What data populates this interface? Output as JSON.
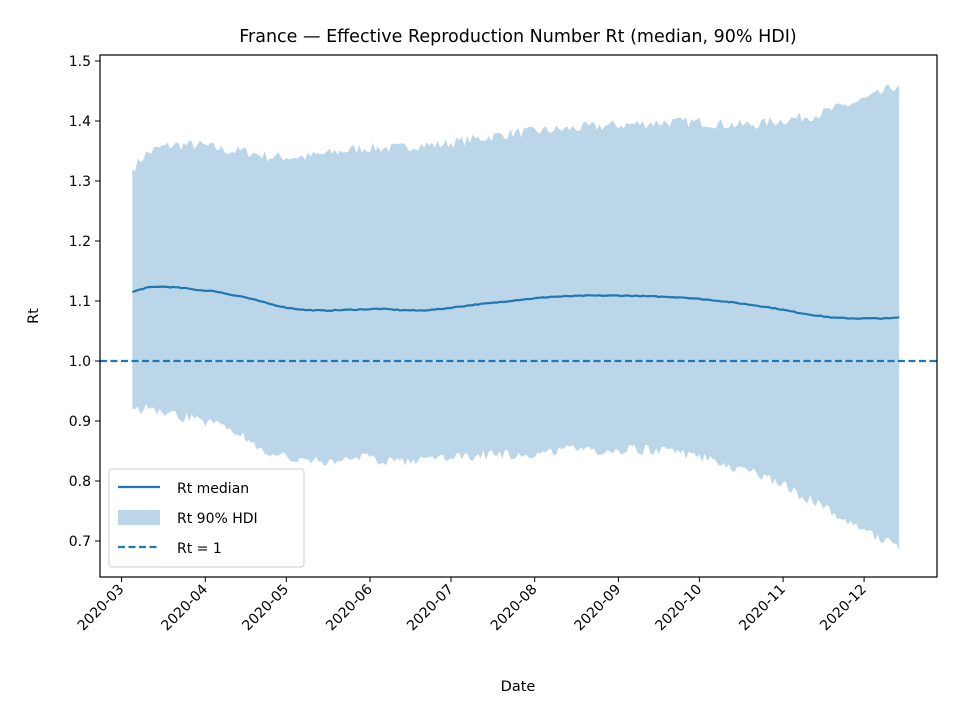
{
  "chart_data": {
    "type": "line",
    "title": "France — Effective Reproduction Number Rt (median, 90% HDI)",
    "xlabel": "Date",
    "ylabel": "Rt",
    "xlim": [
      "2020-02-22",
      "2020-12-28"
    ],
    "ylim": [
      0.64,
      1.51
    ],
    "x_ticks": [
      "2020-03-01",
      "2020-04-01",
      "2020-05-01",
      "2020-06-01",
      "2020-07-01",
      "2020-08-01",
      "2020-09-01",
      "2020-10-01",
      "2020-11-01",
      "2020-12-01"
    ],
    "x_tick_labels": [
      "2020-03",
      "2020-04",
      "2020-05",
      "2020-06",
      "2020-07",
      "2020-08",
      "2020-09",
      "2020-10",
      "2020-11",
      "2020-12"
    ],
    "y_ticks": [
      0.7,
      0.8,
      0.9,
      1.0,
      1.1,
      1.2,
      1.3,
      1.4,
      1.5
    ],
    "y_tick_labels": [
      "0.7",
      "0.8",
      "0.9",
      "1.0",
      "1.1",
      "1.2",
      "1.3",
      "1.4",
      "1.5"
    ],
    "grid": false,
    "legend_position": "lower-left",
    "colors": {
      "median": "#1f77b4",
      "band": "#1f77b4",
      "band_opacity": 0.3,
      "reference": "#1f77b4"
    },
    "series": [
      {
        "name": "Rt median",
        "kind": "line",
        "x": [
          "2020-03-05",
          "2020-03-10",
          "2020-03-15",
          "2020-03-20",
          "2020-03-25",
          "2020-03-30",
          "2020-04-05",
          "2020-04-10",
          "2020-04-15",
          "2020-04-20",
          "2020-04-25",
          "2020-05-01",
          "2020-05-08",
          "2020-05-15",
          "2020-05-22",
          "2020-05-29",
          "2020-06-05",
          "2020-06-12",
          "2020-06-19",
          "2020-06-26",
          "2020-07-03",
          "2020-07-10",
          "2020-07-17",
          "2020-07-24",
          "2020-07-31",
          "2020-08-07",
          "2020-08-14",
          "2020-08-21",
          "2020-08-28",
          "2020-09-04",
          "2020-09-11",
          "2020-09-18",
          "2020-09-25",
          "2020-10-02",
          "2020-10-09",
          "2020-10-16",
          "2020-10-23",
          "2020-10-30",
          "2020-11-06",
          "2020-11-13",
          "2020-11-20",
          "2020-11-27",
          "2020-12-04",
          "2020-12-11",
          "2020-12-14"
        ],
        "values": [
          1.115,
          1.122,
          1.124,
          1.123,
          1.121,
          1.118,
          1.116,
          1.111,
          1.107,
          1.101,
          1.095,
          1.089,
          1.085,
          1.084,
          1.085,
          1.086,
          1.087,
          1.085,
          1.084,
          1.086,
          1.09,
          1.094,
          1.097,
          1.101,
          1.104,
          1.107,
          1.108,
          1.109,
          1.109,
          1.109,
          1.108,
          1.107,
          1.106,
          1.103,
          1.1,
          1.096,
          1.092,
          1.087,
          1.081,
          1.076,
          1.072,
          1.071,
          1.071,
          1.071,
          1.073
        ]
      },
      {
        "name": "Rt 90% HDI",
        "kind": "band",
        "x": [
          "2020-03-05",
          "2020-03-10",
          "2020-03-15",
          "2020-03-20",
          "2020-03-25",
          "2020-03-30",
          "2020-04-05",
          "2020-04-10",
          "2020-04-15",
          "2020-04-20",
          "2020-04-25",
          "2020-05-01",
          "2020-05-08",
          "2020-05-15",
          "2020-05-22",
          "2020-05-29",
          "2020-06-05",
          "2020-06-12",
          "2020-06-19",
          "2020-06-26",
          "2020-07-03",
          "2020-07-10",
          "2020-07-17",
          "2020-07-24",
          "2020-07-31",
          "2020-08-07",
          "2020-08-14",
          "2020-08-21",
          "2020-08-28",
          "2020-09-04",
          "2020-09-11",
          "2020-09-18",
          "2020-09-25",
          "2020-10-02",
          "2020-10-09",
          "2020-10-16",
          "2020-10-23",
          "2020-10-30",
          "2020-11-06",
          "2020-11-13",
          "2020-11-20",
          "2020-11-27",
          "2020-12-04",
          "2020-12-11",
          "2020-12-14"
        ],
        "lower": [
          0.92,
          0.92,
          0.915,
          0.91,
          0.905,
          0.9,
          0.895,
          0.89,
          0.875,
          0.86,
          0.848,
          0.84,
          0.835,
          0.83,
          0.835,
          0.84,
          0.835,
          0.832,
          0.832,
          0.836,
          0.84,
          0.842,
          0.845,
          0.845,
          0.846,
          0.85,
          0.852,
          0.852,
          0.852,
          0.852,
          0.852,
          0.85,
          0.845,
          0.84,
          0.83,
          0.82,
          0.81,
          0.8,
          0.78,
          0.765,
          0.745,
          0.725,
          0.71,
          0.695,
          0.685
        ],
        "upper": [
          1.32,
          1.345,
          1.355,
          1.36,
          1.36,
          1.36,
          1.355,
          1.35,
          1.35,
          1.345,
          1.34,
          1.34,
          1.34,
          1.345,
          1.35,
          1.355,
          1.355,
          1.355,
          1.36,
          1.36,
          1.365,
          1.37,
          1.375,
          1.38,
          1.382,
          1.385,
          1.387,
          1.39,
          1.392,
          1.394,
          1.396,
          1.398,
          1.398,
          1.398,
          1.395,
          1.393,
          1.395,
          1.4,
          1.405,
          1.41,
          1.42,
          1.43,
          1.44,
          1.455,
          1.46
        ]
      },
      {
        "name": "Rt = 1",
        "kind": "hline",
        "value": 1.0
      }
    ]
  }
}
